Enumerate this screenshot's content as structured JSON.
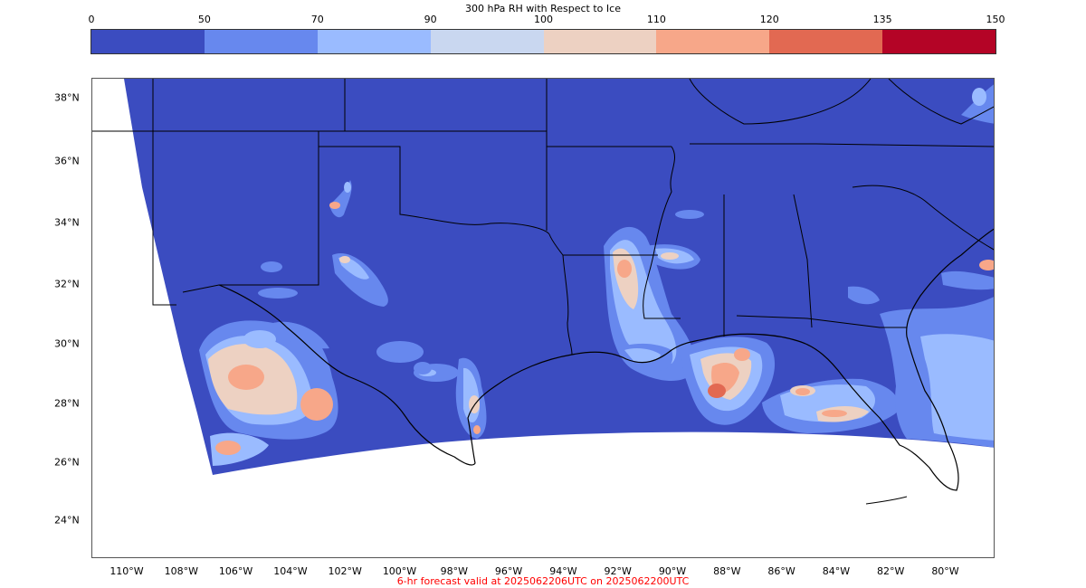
{
  "colorbar": {
    "title": "300 hPa RH with Respect to Ice",
    "ticks": [
      "0",
      "50",
      "70",
      "90",
      "100",
      "110",
      "120",
      "135",
      "150"
    ],
    "colors": [
      "#3b4cc0",
      "#6788ee",
      "#9abbff",
      "#c9d7f0",
      "#edd1c2",
      "#f7a789",
      "#e26952",
      "#b40426"
    ]
  },
  "map": {
    "ocean_color": "#ffffff",
    "land_fill": "#3b4cc0",
    "lat_labels": [
      "38°N",
      "36°N",
      "34°N",
      "32°N",
      "30°N",
      "28°N",
      "26°N",
      "24°N"
    ],
    "lon_labels": [
      "110°W",
      "108°W",
      "106°W",
      "104°W",
      "102°W",
      "100°W",
      "98°W",
      "96°W",
      "94°W",
      "92°W",
      "90°W",
      "88°W",
      "86°W",
      "84°W",
      "82°W",
      "80°W"
    ]
  },
  "footer": {
    "text": "6-hr forecast valid at 2025062206UTC on 2025062200UTC",
    "color": "#ff0000"
  }
}
